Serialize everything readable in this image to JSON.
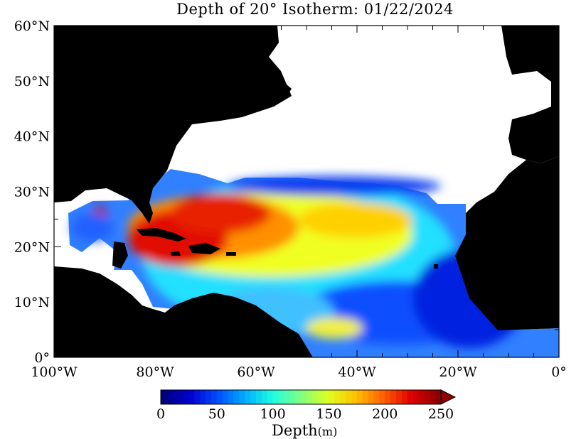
{
  "title": "Depth of 20° Isotherm: 01/22/2024",
  "map": {
    "lon_range": [
      -100,
      0
    ],
    "lat_range": [
      0,
      60
    ],
    "lon_ticks": [
      {
        "value": -100,
        "label": "100°W"
      },
      {
        "value": -80,
        "label": "80°W"
      },
      {
        "value": -60,
        "label": "60°W"
      },
      {
        "value": -40,
        "label": "40°W"
      },
      {
        "value": -20,
        "label": "20°W"
      },
      {
        "value": 0,
        "label": "0°"
      }
    ],
    "lat_ticks": [
      {
        "value": 60,
        "label": "60°N"
      },
      {
        "value": 50,
        "label": "50°N"
      },
      {
        "value": 40,
        "label": "40°N"
      },
      {
        "value": 30,
        "label": "30°N"
      },
      {
        "value": 20,
        "label": "20°N"
      },
      {
        "value": 10,
        "label": "10°N"
      },
      {
        "value": 0,
        "label": "0°"
      }
    ],
    "land_color": "#000000",
    "nodata_color": "#ffffff"
  },
  "colorbar": {
    "min": 0,
    "max": 250,
    "tick_labels": [
      "0",
      "50",
      "100",
      "150",
      "200",
      "250"
    ],
    "label": "Depth",
    "unit": "(m)",
    "colors": [
      "#00007f",
      "#0000d0",
      "#0050ff",
      "#00b0ff",
      "#20ffe0",
      "#80ff80",
      "#e0ff20",
      "#ffc000",
      "#ff6000",
      "#e00000",
      "#8b0000"
    ]
  }
}
